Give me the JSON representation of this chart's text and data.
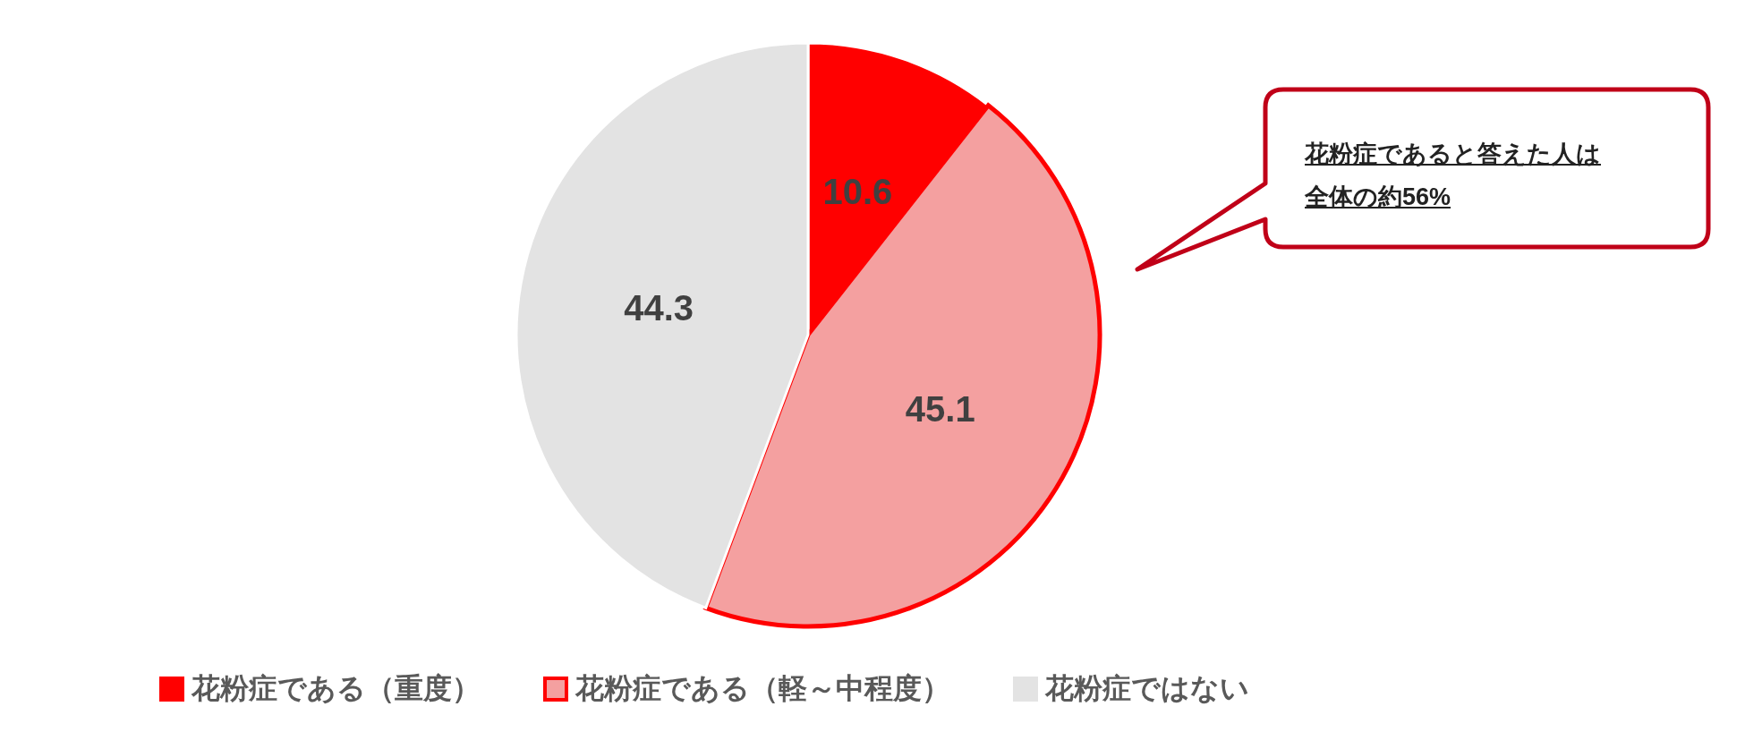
{
  "chart_data": {
    "type": "pie",
    "categories": [
      "花粉症である（重度）",
      "花粉症である（軽～中程度）",
      "花粉症ではない"
    ],
    "values": [
      10.6,
      45.1,
      44.3
    ],
    "colors": [
      "#ff0000",
      "#f4a0a0",
      "#e3e3e3"
    ],
    "data_labels": true,
    "legend": "bottom",
    "annotations": [
      "花粉症であると答えた人は全体の約56%"
    ]
  }
}
